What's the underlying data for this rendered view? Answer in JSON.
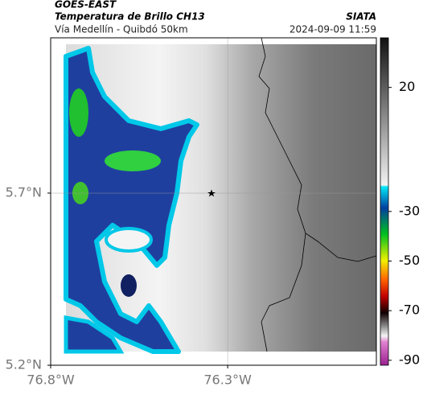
{
  "header": {
    "source": "GOES-EAST",
    "title": "Temperatura de Brillo CH13",
    "brand": "SIATA",
    "subtitle": "Vía Medellín - Quibdó 50km",
    "timestamp": "2024-09-09 11:59"
  },
  "map": {
    "xlim": [
      -76.8,
      -75.88
    ],
    "ylim": [
      5.2,
      6.151
    ],
    "xticks": [
      {
        "value": -76.8,
        "label": "76.8°W"
      },
      {
        "value": -76.3,
        "label": "76.3°W"
      }
    ],
    "yticks": [
      {
        "value": 5.7,
        "label": "5.7°N"
      },
      {
        "value": 5.2,
        "label": "5.2°N"
      }
    ],
    "grid": true
  },
  "colorbar": {
    "clim": [
      -92,
      40
    ],
    "ticks": [
      20,
      -30,
      -50,
      -70,
      -90
    ]
  }
}
